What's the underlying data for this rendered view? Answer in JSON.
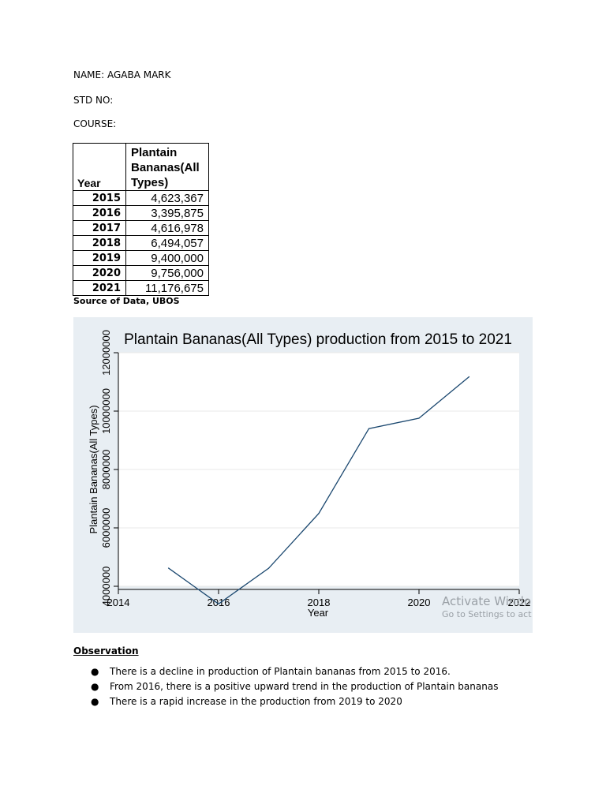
{
  "header": {
    "name_line": "NAME: AGABA MARK",
    "std_line": "STD NO:",
    "course_line": "COURSE:"
  },
  "table": {
    "col_year": "Year",
    "col_value": "Plantain Bananas(All Types)",
    "rows": [
      {
        "year": "2015",
        "value": "4,623,367"
      },
      {
        "year": "2016",
        "value": "3,395,875"
      },
      {
        "year": "2017",
        "value": "4,616,978"
      },
      {
        "year": "2018",
        "value": "6,494,057"
      },
      {
        "year": "2019",
        "value": "9,400,000"
      },
      {
        "year": "2020",
        "value": "9,756,000"
      },
      {
        "year": "2021",
        "value": "11,176,675"
      }
    ],
    "source": "Source of Data, UBOS"
  },
  "chart_data": {
    "type": "line",
    "title": "Plantain Bananas(All Types) production from 2015 to 2021",
    "xlabel": "Year",
    "ylabel": "Plantain Bananas(All Types)",
    "x": [
      2015,
      2016,
      2017,
      2018,
      2019,
      2020,
      2021
    ],
    "series": [
      {
        "values": [
          4623367,
          3395875,
          4616978,
          6494057,
          9400000,
          9756000,
          11176675
        ]
      }
    ],
    "xticks": [
      "2014",
      "2016",
      "2018",
      "2020",
      "2022"
    ],
    "yticks": [
      "4000000",
      "6000000",
      "8000000",
      "10000000",
      "12000000"
    ],
    "xlim": [
      2014,
      2022
    ],
    "ylim": [
      4000000,
      12000000
    ],
    "grid": true,
    "line_color": "#1a476f",
    "background": "#e8eef3",
    "watermark_line1": "Activate Windo",
    "watermark_line2": "Go to Settings to act"
  },
  "observation": {
    "heading": "Observation",
    "bullets": [
      "There is a decline in production of Plantain bananas from 2015 to 2016.",
      "From 2016, there is a positive upward trend in the production of Plantain bananas",
      "There is a rapid increase in the production from 2019 to 2020"
    ]
  }
}
